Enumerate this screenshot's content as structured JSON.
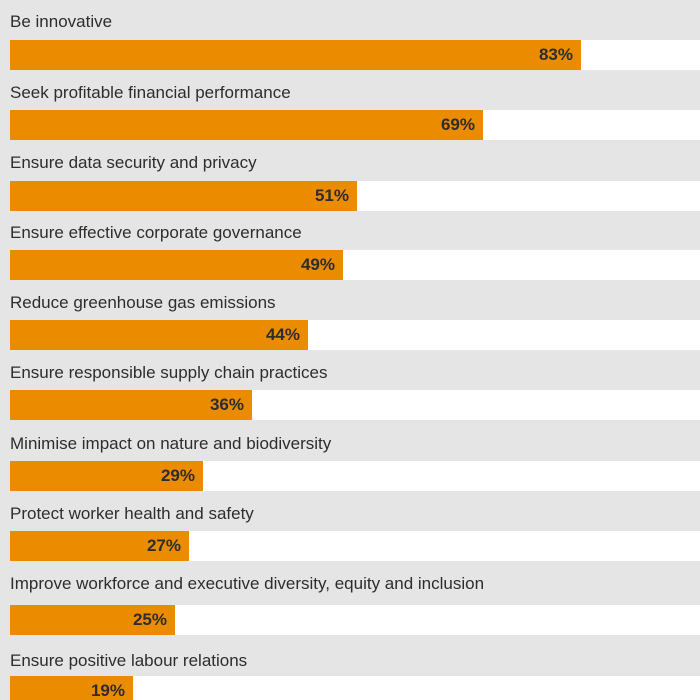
{
  "chart_data": {
    "type": "bar",
    "orientation": "horizontal",
    "categories": [
      "Be innovative",
      "Seek profitable financial performance",
      "Ensure data security and privacy",
      "Ensure effective corporate governance",
      "Reduce greenhouse gas emissions",
      "Ensure responsible supply chain practices",
      "Minimise impact on nature and biodiversity",
      "Protect worker health and safety",
      "Improve workforce and executive diversity, equity and inclusion",
      "Ensure positive labour relations"
    ],
    "values": [
      83,
      69,
      51,
      49,
      44,
      36,
      29,
      27,
      25,
      19
    ],
    "value_labels": [
      "83%",
      "69%",
      "51%",
      "49%",
      "44%",
      "36%",
      "29%",
      "27%",
      "25%",
      "19%"
    ],
    "xlim": [
      0,
      100
    ],
    "grid": false,
    "colors": {
      "bar": "#eb8c00",
      "track": "#ffffff",
      "background": "#e5e5e6",
      "text": "#2d2d2d"
    }
  }
}
